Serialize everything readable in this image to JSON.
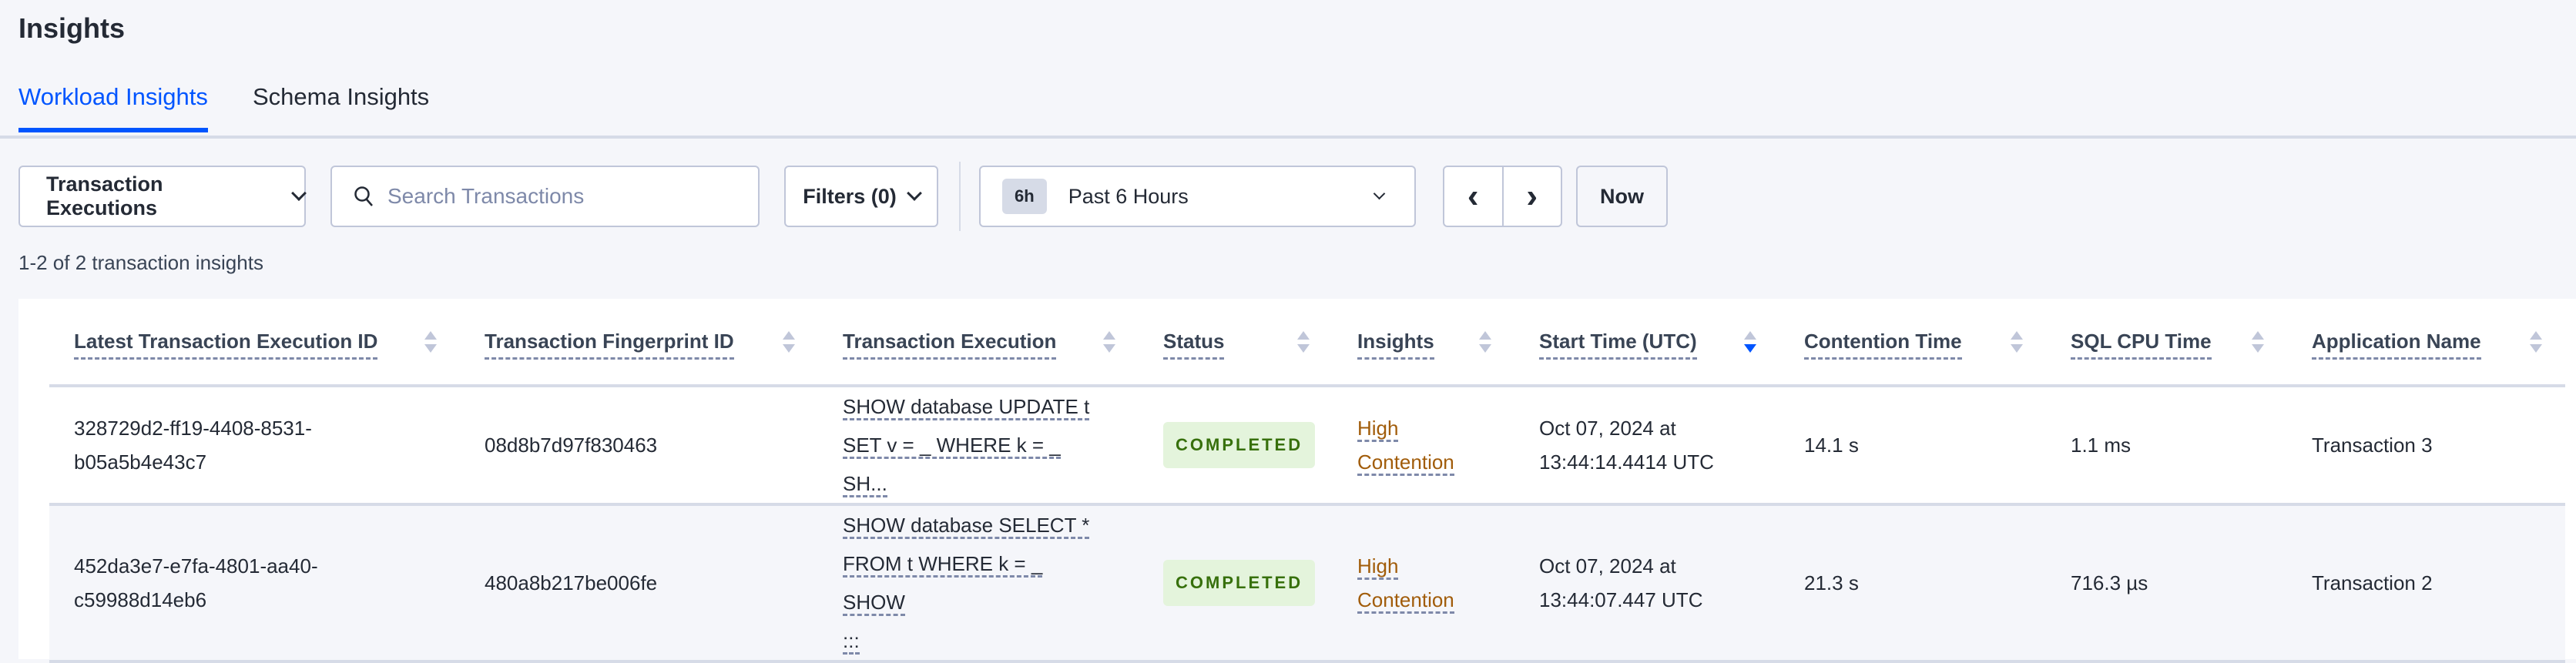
{
  "page": {
    "title": "Insights"
  },
  "tabs": [
    {
      "label": "Workload Insights",
      "active": true
    },
    {
      "label": "Schema Insights",
      "active": false
    }
  ],
  "toolbar": {
    "view_select": "Transaction Executions",
    "search_placeholder": "Search Transactions",
    "filters": "Filters (0)",
    "time_pill": "6h",
    "time_range": "Past 6 Hours",
    "prev": "‹",
    "next": "›",
    "now": "Now"
  },
  "result_count": "1-2 of 2 transaction insights",
  "table": {
    "columns": [
      "Latest Transaction Execution ID",
      "Transaction Fingerprint ID",
      "Transaction Execution",
      "Status",
      "Insights",
      "Start Time (UTC)",
      "Contention Time",
      "SQL CPU Time",
      "Application Name"
    ],
    "sorted_column": "Start Time (UTC)",
    "sort_direction": "descending",
    "rows": [
      {
        "exec_id_1": "328729d2-ff19-4408-8531-",
        "exec_id_2": "b05a5b4e43c7",
        "fingerprint": "08d8b7d97f830463",
        "sql_1": "SHOW database UPDATE t",
        "sql_2": "SET v = _ WHERE k = _ SH...",
        "sql_3": "",
        "status": "COMPLETED",
        "insight_1": "High",
        "insight_2": "Contention",
        "start_1": "Oct 07, 2024 at",
        "start_2": "13:44:14.4414 UTC",
        "contention": "14.1 s",
        "cpu": "1.1 ms",
        "app": "Transaction 3"
      },
      {
        "exec_id_1": "452da3e7-e7fa-4801-aa40-",
        "exec_id_2": "c59988d14eb6",
        "fingerprint": "480a8b217be006fe",
        "sql_1": "SHOW database SELECT *",
        "sql_2": "FROM t WHERE k = _ SHOW",
        "sql_3": ":::",
        "status": "COMPLETED",
        "insight_1": "High",
        "insight_2": "Contention",
        "start_1": "Oct 07, 2024 at",
        "start_2": "13:44:07.447 UTC",
        "contention": "21.3 s",
        "cpu": "716.3 µs",
        "app": "Transaction 2"
      }
    ]
  },
  "colors": {
    "accent": "#0055ff",
    "status_completed_bg": "#e4f4dc",
    "status_completed_text": "#37700c",
    "insight_text": "#a15c0a"
  }
}
